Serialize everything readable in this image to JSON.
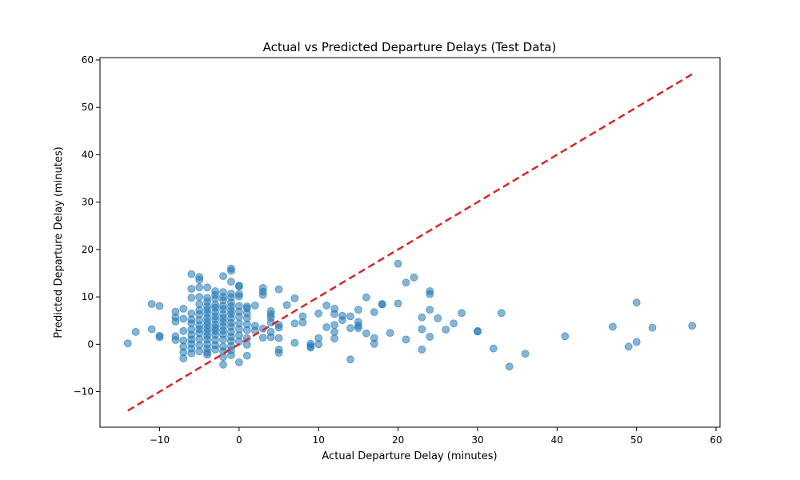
{
  "chart_data": {
    "type": "scatter",
    "title": "Actual vs Predicted Departure Delays (Test Data)",
    "xlabel": "Actual Departure Delay (minutes)",
    "ylabel": "Predicted Departure Delay (minutes)",
    "xlim": [
      -17.5,
      60.5
    ],
    "ylim": [
      -17.5,
      60.5
    ],
    "xticks": [
      -10,
      0,
      10,
      20,
      30,
      40,
      50,
      60
    ],
    "yticks": [
      -10,
      0,
      10,
      20,
      30,
      40,
      50,
      60
    ],
    "xtick_labels": [
      "−10",
      "0",
      "10",
      "20",
      "30",
      "40",
      "50",
      "60"
    ],
    "ytick_labels": [
      "−10",
      "0",
      "10",
      "20",
      "30",
      "40",
      "50",
      "60"
    ],
    "grid": false,
    "colors": {
      "points": "#1f77b4",
      "line": "#d62728"
    },
    "reference_line": {
      "style": "dashed",
      "x": [
        -14,
        57
      ],
      "y": [
        -14,
        57
      ]
    },
    "series": [
      {
        "marker": "circle",
        "alpha": 0.55,
        "x": [
          -14,
          -13,
          -11,
          -11,
          -10,
          -10,
          -10,
          -8,
          -8,
          -8,
          -8,
          -8,
          -7,
          -7,
          -7,
          -7,
          -7,
          -7,
          -7,
          -6,
          -6,
          -6,
          -6,
          -6,
          -6,
          -6,
          -6,
          -6,
          -6,
          -6,
          -6,
          -5,
          -5,
          -5,
          -5,
          -5,
          -5,
          -5,
          -5,
          -5,
          -5,
          -5,
          -5,
          -5,
          -5,
          -4,
          -4,
          -4,
          -4,
          -4,
          -4,
          -4,
          -4,
          -4,
          -4,
          -4,
          -4,
          -4,
          -4,
          -4,
          -4,
          -4,
          -3,
          -3,
          -3,
          -3,
          -3,
          -3,
          -3,
          -3,
          -3,
          -3,
          -3,
          -3,
          -3,
          -3,
          -3,
          -2,
          -2,
          -2,
          -2,
          -2,
          -2,
          -2,
          -2,
          -2,
          -2,
          -2,
          -2,
          -2,
          -2,
          -2,
          -2,
          -2,
          -1,
          -1,
          -1,
          -1,
          -1,
          -1,
          -1,
          -1,
          -1,
          -1,
          -1,
          -1,
          -1,
          -1,
          -1,
          -1,
          -1,
          -1,
          0,
          0,
          0,
          0,
          0,
          0,
          0,
          0,
          0,
          0,
          0,
          0,
          1,
          1,
          1,
          1,
          1,
          1,
          1,
          1,
          1,
          2,
          2,
          2,
          3,
          3,
          3,
          3,
          3,
          4,
          4,
          4,
          4,
          4,
          4,
          5,
          5,
          5,
          5,
          5,
          5,
          6,
          7,
          7,
          7,
          8,
          8,
          9,
          9,
          9,
          10,
          10,
          10,
          11,
          11,
          12,
          12,
          12,
          12,
          12,
          13,
          13,
          14,
          14,
          14,
          15,
          15,
          15,
          15,
          16,
          16,
          17,
          17,
          17,
          18,
          18,
          19,
          20,
          20,
          21,
          21,
          22,
          23,
          23,
          23,
          24,
          24,
          24,
          24,
          25,
          26,
          27,
          28,
          30,
          30,
          32,
          33,
          34,
          36,
          41,
          47,
          49,
          50,
          50,
          52,
          57
        ],
        "y": [
          0.2,
          2.6,
          8.5,
          3.2,
          8.1,
          1.8,
          1.5,
          6.9,
          5.7,
          4.8,
          1.7,
          0.9,
          7.5,
          5.4,
          2.8,
          0.8,
          -0.5,
          -1.7,
          -3.0,
          14.8,
          11.7,
          9.8,
          6.5,
          5.2,
          4.4,
          3.1,
          2.0,
          1.0,
          0.1,
          -0.9,
          -1.9,
          14.2,
          13.6,
          12.0,
          10.0,
          8.5,
          7.2,
          6.3,
          5.1,
          4.0,
          3.2,
          2.3,
          1.1,
          -0.2,
          -1.5,
          12.0,
          9.8,
          9.0,
          8.0,
          7.3,
          6.5,
          5.6,
          4.8,
          4.1,
          3.3,
          2.6,
          1.8,
          1.0,
          0.0,
          -0.9,
          -1.7,
          -2.2,
          11.2,
          10.4,
          9.6,
          8.3,
          7.7,
          6.8,
          5.9,
          5.2,
          4.2,
          3.5,
          2.8,
          2.0,
          0.9,
          -0.2,
          -1.1,
          14.4,
          11.0,
          10.0,
          9.3,
          8.1,
          7.4,
          6.3,
          5.5,
          4.7,
          3.8,
          2.9,
          2.1,
          1.0,
          -0.5,
          -1.5,
          -2.7,
          -4.3,
          16.0,
          15.5,
          13.2,
          10.7,
          9.9,
          8.8,
          8.0,
          7.1,
          6.4,
          5.5,
          4.5,
          3.7,
          2.6,
          1.6,
          0.7,
          -0.4,
          -1.3,
          -2.3,
          12.4,
          12.2,
          10.6,
          10.1,
          8.1,
          6.9,
          5.8,
          4.4,
          3.2,
          1.9,
          0.6,
          -3.8,
          8.0,
          7.6,
          6.6,
          5.5,
          4.2,
          3.0,
          1.3,
          -0.1,
          -2.4,
          8.2,
          3.9,
          2.9,
          11.9,
          11.1,
          10.4,
          3.3,
          1.4,
          7.0,
          6.3,
          5.6,
          4.6,
          2.6,
          1.5,
          11.6,
          4.1,
          3.5,
          1.3,
          -1.1,
          -1.8,
          8.3,
          9.7,
          4.4,
          0.3,
          5.9,
          4.6,
          0.1,
          -0.7,
          -0.4,
          6.5,
          1.3,
          0.0,
          8.2,
          3.6,
          7.5,
          6.4,
          4.1,
          2.6,
          1.2,
          6.0,
          5.1,
          5.9,
          3.4,
          -3.2,
          7.3,
          4.7,
          3.9,
          3.4,
          9.9,
          2.3,
          6.8,
          1.3,
          0.1,
          8.5,
          8.4,
          2.4,
          17.0,
          8.6,
          13.0,
          1.0,
          14.1,
          5.7,
          3.2,
          -1.1,
          11.2,
          10.6,
          7.3,
          1.6,
          5.5,
          3.1,
          4.4,
          6.6,
          2.7,
          2.8,
          -0.9,
          6.6,
          -4.7,
          -2.0,
          1.7,
          3.7,
          -0.5,
          8.8,
          0.5,
          3.5,
          3.9
        ]
      }
    ]
  }
}
